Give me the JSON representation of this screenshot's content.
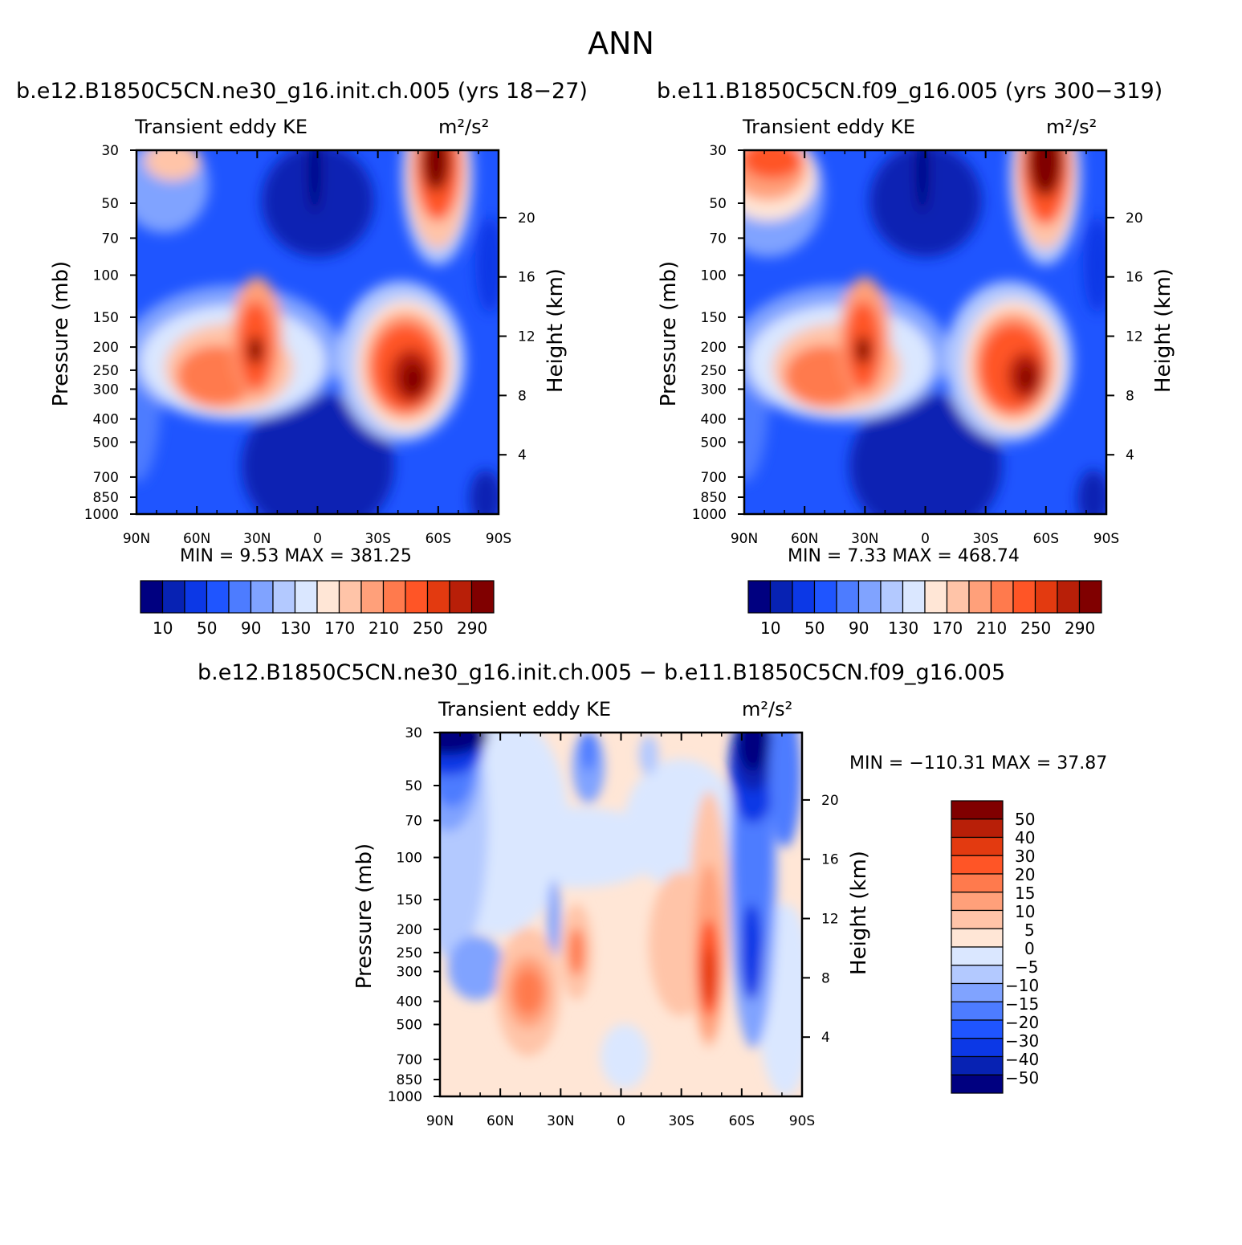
{
  "page_title": "ANN",
  "colors": {
    "blue_ramp": [
      "#000080",
      "#0722b3",
      "#0c38e6",
      "#1f55ff",
      "#4d7cff",
      "#80a3ff",
      "#b3c9ff",
      "#dae7ff"
    ],
    "red_ramp": [
      "#ffe6d6",
      "#ffc4a8",
      "#ffa07a",
      "#ff7a4d",
      "#ff5526",
      "#e33a10",
      "#b81f08",
      "#800000"
    ],
    "diff_palette": [
      "#000080",
      "#0722b3",
      "#0c38e6",
      "#1f55ff",
      "#4d7cff",
      "#80a3ff",
      "#b3c9ff",
      "#dae7ff",
      "#ffe6d6",
      "#ffc4a8",
      "#ffa07a",
      "#ff7a4d",
      "#ff5526",
      "#e33a10",
      "#b81f08",
      "#800000"
    ]
  },
  "panels": {
    "left": {
      "title": "b.e12.B1850C5CN.ne30_g16.init.ch.005 (yrs 18−27)",
      "left_label": "Transient eddy KE",
      "units": "m²/s²",
      "minmax": "MIN =     9.53   MAX =  381.25",
      "colorbar_labels": [
        "10",
        "50",
        "90",
        "130",
        "170",
        "210",
        "250",
        "290"
      ]
    },
    "right": {
      "title": "b.e11.B1850C5CN.f09_g16.005 (yrs 300−319)",
      "left_label": "Transient eddy KE",
      "units": "m²/s²",
      "minmax": "MIN =     7.33   MAX =  468.74",
      "colorbar_labels": [
        "10",
        "50",
        "90",
        "130",
        "170",
        "210",
        "250",
        "290"
      ]
    },
    "diff": {
      "title": "b.e12.B1850C5CN.ne30_g16.init.ch.005 − b.e11.B1850C5CN.f09_g16.005",
      "left_label": "Transient eddy KE",
      "units": "m²/s²",
      "minmax": "MIN = −110.31   MAX =   37.87",
      "colorbar_labels": [
        "50",
        "40",
        "30",
        "20",
        "15",
        "10",
        "5",
        "0",
        "−5",
        "−10",
        "−15",
        "−20",
        "−30",
        "−40",
        "−50"
      ]
    }
  },
  "axes": {
    "ylabel": "Pressure (mb)",
    "ylabel_right": "Height (km)",
    "x_ticks": [
      "90N",
      "60N",
      "30N",
      "0",
      "30S",
      "60S",
      "90S"
    ],
    "y_ticks": [
      "30",
      "50",
      "70",
      "100",
      "150",
      "200",
      "250",
      "300",
      "400",
      "500",
      "700",
      "850",
      "1000"
    ],
    "height_ticks": [
      "20",
      "16",
      "12",
      "8",
      "4"
    ]
  },
  "chart_data": [
    {
      "type": "heatmap",
      "title": "b.e12.B1850C5CN.ne30_g16.init.ch.005 (yrs 18−27)",
      "ylabel": "Pressure (mb)",
      "y2label": "Height (km)",
      "x": [
        "90N",
        "60N",
        "30N",
        "0",
        "30S",
        "60S",
        "90S"
      ],
      "y": [
        30,
        50,
        70,
        100,
        150,
        200,
        250,
        300,
        400,
        500,
        700,
        850,
        1000
      ],
      "y_scale": "log",
      "y2": [
        20,
        16,
        12,
        8,
        4
      ],
      "colorbar": [
        10,
        50,
        90,
        130,
        170,
        210,
        250,
        290
      ],
      "units": "m²/s²",
      "min": 9.53,
      "max": 381.25,
      "features": [
        {
          "lat": 30,
          "p": 200,
          "value": 290
        },
        {
          "lat": 45,
          "p": 270,
          "value": 250
        },
        {
          "lat": -47,
          "p": 270,
          "value": 310
        },
        {
          "lat": -60,
          "p": 35,
          "value": 381.25
        },
        {
          "lat": 75,
          "p": 35,
          "value": 170
        },
        {
          "lat": 0,
          "p": 40,
          "value": 9.53
        }
      ]
    },
    {
      "type": "heatmap",
      "title": "b.e11.B1850C5CN.f09_g16.005 (yrs 300−319)",
      "ylabel": "Pressure (mb)",
      "y2label": "Height (km)",
      "x": [
        "90N",
        "60N",
        "30N",
        "0",
        "30S",
        "60S",
        "90S"
      ],
      "y": [
        30,
        50,
        70,
        100,
        150,
        200,
        250,
        300,
        400,
        500,
        700,
        850,
        1000
      ],
      "y_scale": "log",
      "y2": [
        20,
        16,
        12,
        8,
        4
      ],
      "colorbar": [
        10,
        50,
        90,
        130,
        170,
        210,
        250,
        290
      ],
      "units": "m²/s²",
      "min": 7.33,
      "max": 468.74,
      "features": [
        {
          "lat": 30,
          "p": 200,
          "value": 290
        },
        {
          "lat": 45,
          "p": 270,
          "value": 250
        },
        {
          "lat": -50,
          "p": 270,
          "value": 300
        },
        {
          "lat": -60,
          "p": 35,
          "value": 468.74
        },
        {
          "lat": 80,
          "p": 35,
          "value": 250
        },
        {
          "lat": 0,
          "p": 40,
          "value": 7.33
        }
      ]
    },
    {
      "type": "heatmap",
      "title": "b.e12.B1850C5CN.ne30_g16.init.ch.005 − b.e11.B1850C5CN.f09_g16.005",
      "ylabel": "Pressure (mb)",
      "y2label": "Height (km)",
      "x": [
        "90N",
        "60N",
        "30N",
        "0",
        "30S",
        "60S",
        "90S"
      ],
      "y": [
        30,
        50,
        70,
        100,
        150,
        200,
        250,
        300,
        400,
        500,
        700,
        850,
        1000
      ],
      "y_scale": "log",
      "y2": [
        20,
        16,
        12,
        8,
        4
      ],
      "colorbar": [
        -50,
        -40,
        -30,
        -20,
        -15,
        -10,
        -5,
        0,
        5,
        10,
        15,
        20,
        30,
        40,
        50
      ],
      "units": "m²/s²",
      "min": -110.31,
      "max": 37.87,
      "features": [
        {
          "lat": -60,
          "p": 35,
          "value": -110.31
        },
        {
          "lat": 85,
          "p": 35,
          "value": -60
        },
        {
          "lat": -44,
          "p": 330,
          "value": 37.87
        },
        {
          "lat": -60,
          "p": 300,
          "value": -30
        },
        {
          "lat": 40,
          "p": 380,
          "value": 20
        },
        {
          "lat": 20,
          "p": 270,
          "value": 15
        }
      ]
    }
  ]
}
